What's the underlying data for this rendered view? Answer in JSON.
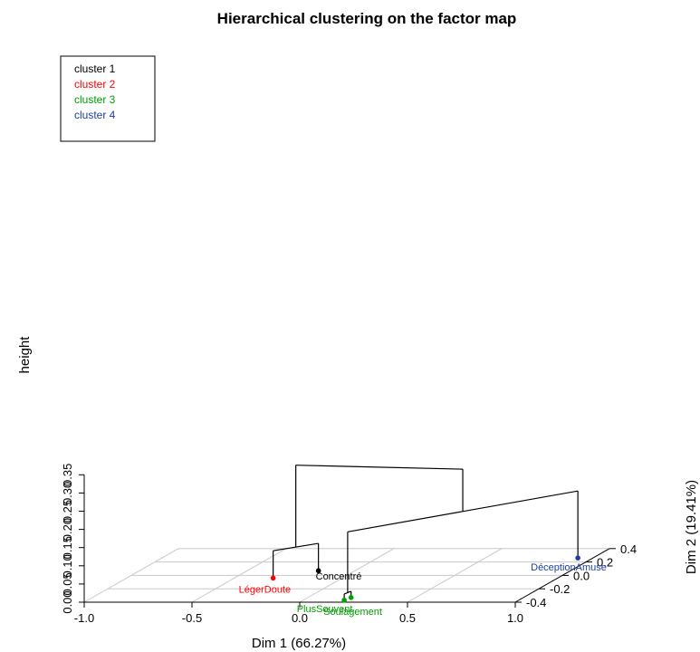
{
  "chart_data": {
    "type": "dendrogram-3d",
    "title": "Hierarchical clustering on the factor map",
    "xlabel": "Dim 1 (66.27%)",
    "ylabel": "Dim 2 (19.41%)",
    "zlabel": "height",
    "xlim": [
      -1.0,
      1.0
    ],
    "ylim": [
      -0.4,
      0.4
    ],
    "zlim": [
      0.0,
      0.35
    ],
    "x_ticks": [
      "-1.0",
      "-0.5",
      "0.0",
      "0.5",
      "1.0"
    ],
    "y_ticks": [
      "-0.4",
      "-0.2",
      "0.0",
      "0.2",
      "0.4"
    ],
    "z_ticks": [
      "0.00",
      "0.05",
      "0.10",
      "0.15",
      "0.20",
      "0.25",
      "0.30",
      "0.35"
    ],
    "grid": true,
    "legend_position": "top-left",
    "clusters": [
      {
        "name": "cluster 1",
        "color": "#000000"
      },
      {
        "name": "cluster 2",
        "color": "#ff0000"
      },
      {
        "name": "cluster 3",
        "color": "#00a000"
      },
      {
        "name": "cluster 4",
        "color": "#1e3ea0"
      }
    ],
    "individuals": [
      {
        "label": "Concentré",
        "cluster": 1,
        "dim1": -0.17,
        "dim2": 0.07
      },
      {
        "label": "LégerDoute",
        "cluster": 2,
        "dim1": -0.32,
        "dim2": -0.04
      },
      {
        "label": "PlusSouvent",
        "cluster": 3,
        "dim1": 0.2,
        "dim2": -0.33
      },
      {
        "label": "Soulagement",
        "cluster": 3,
        "dim1": 0.19,
        "dim2": -0.37
      },
      {
        "label": "DéceptionAmuse",
        "cluster": 4,
        "dim1": 0.93,
        "dim2": 0.26
      }
    ],
    "merges": [
      {
        "a": "PlusSouvent",
        "b": "Soulagement",
        "height": 0.017
      },
      {
        "a": "LégerDoute",
        "b": "Concentré",
        "height": 0.075
      },
      {
        "a": "merge1",
        "b": "DéceptionAmuse",
        "height": 0.184
      },
      {
        "a": "merge2",
        "b": "merge3",
        "height": 0.3
      }
    ]
  }
}
